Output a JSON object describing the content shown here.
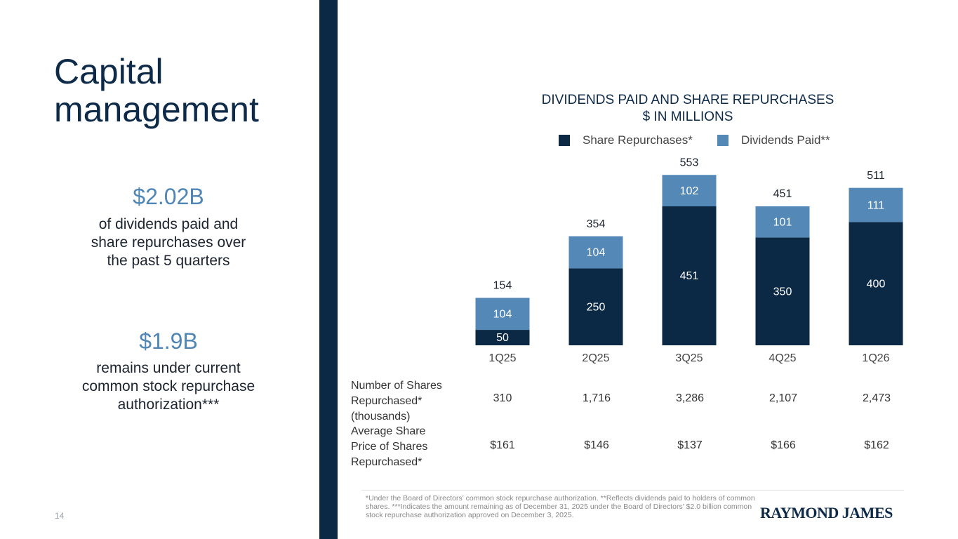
{
  "page": {
    "title_line1": "Capital",
    "title_line2": "management",
    "number": "14",
    "logo": "RAYMOND JAMES",
    "footnote": "*Under the Board of Directors' common stock repurchase authorization. **Reflects dividends paid to holders of common shares. ***Indicates the amount remaining as of December 31, 2025 under the Board of Directors' $2.0 billion common stock repurchase authorization approved on December 3, 2025."
  },
  "stats": [
    {
      "value": "$2.02B",
      "desc": [
        "of dividends paid and",
        "share repurchases over",
        "the past 5 quarters"
      ]
    },
    {
      "value": "$1.9B",
      "desc": [
        "remains under current",
        "common stock repurchase",
        "authorization***"
      ]
    }
  ],
  "colors": {
    "repurchases": "#0b2844",
    "dividends": "#5388b7",
    "accent": "#4f86b5"
  },
  "chart_data": {
    "type": "bar",
    "stacked": true,
    "title": "DIVIDENDS PAID AND SHARE REPURCHASES",
    "subtitle": "$ IN MILLIONS",
    "categories": [
      "1Q25",
      "2Q25",
      "3Q25",
      "4Q25",
      "1Q26"
    ],
    "series": [
      {
        "name": "Share Repurchases*",
        "values": [
          50,
          250,
          451,
          350,
          400
        ]
      },
      {
        "name": "Dividends Paid**",
        "values": [
          104,
          104,
          102,
          101,
          111
        ]
      }
    ],
    "totals": [
      154,
      354,
      553,
      451,
      511
    ],
    "legend_position": "top"
  },
  "table": {
    "rows": [
      {
        "label": [
          "Number of Shares",
          "Repurchased*",
          "(thousands)"
        ],
        "values": [
          "310",
          "1,716",
          "3,286",
          "2,107",
          "2,473"
        ]
      },
      {
        "label": [
          "Average Share",
          "Price of Shares",
          "Repurchased*"
        ],
        "values": [
          "$161",
          "$146",
          "$137",
          "$166",
          "$162"
        ]
      }
    ]
  }
}
